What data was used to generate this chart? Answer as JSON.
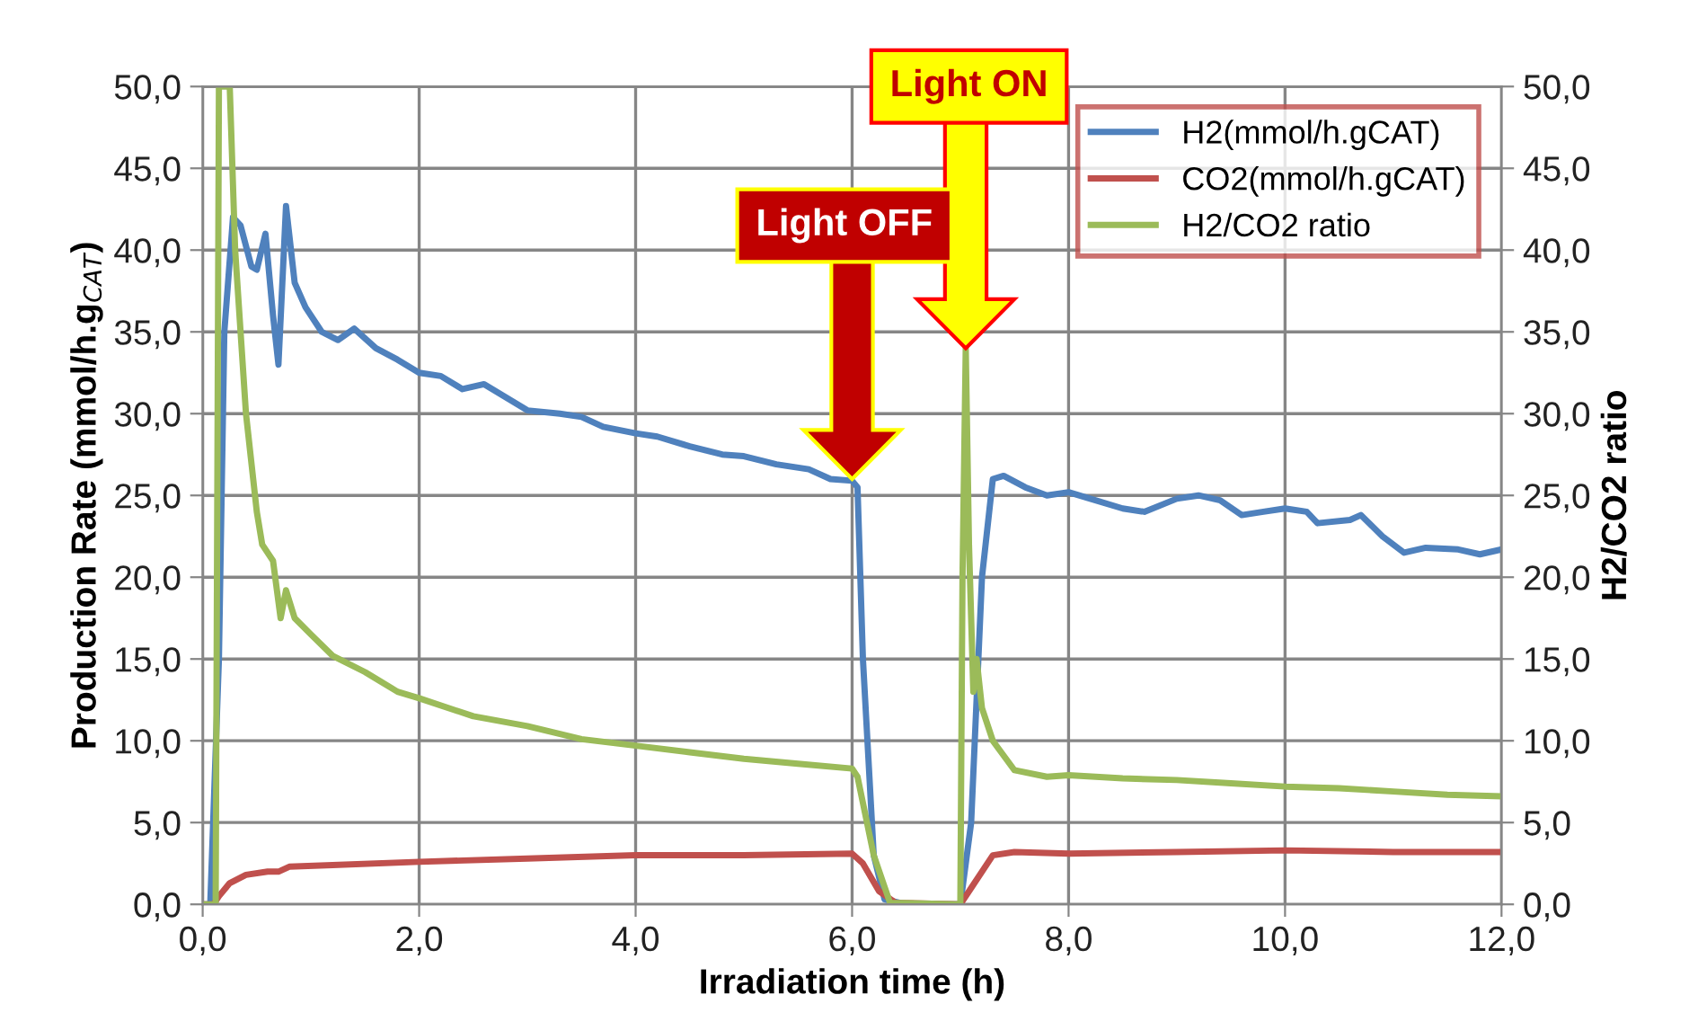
{
  "chart_data": {
    "type": "line",
    "xlabel": "Irradiation time (h)",
    "ylabel": "Production Rate (mmol/h.g$_{CAT}$)",
    "y2label": "H2/CO2 ratio",
    "xlim": [
      0,
      12
    ],
    "ylim": [
      0,
      50
    ],
    "y2lim": [
      0,
      50
    ],
    "xticks": [
      {
        "value": 0,
        "label": "0,0"
      },
      {
        "value": 2,
        "label": "2,0"
      },
      {
        "value": 4,
        "label": "4,0"
      },
      {
        "value": 6,
        "label": "6,0"
      },
      {
        "value": 8,
        "label": "8,0"
      },
      {
        "value": 10,
        "label": "10,0"
      },
      {
        "value": 12,
        "label": "12,0"
      }
    ],
    "yticks": [
      {
        "value": 0,
        "label": "0,0"
      },
      {
        "value": 5,
        "label": "5,0"
      },
      {
        "value": 10,
        "label": "10,0"
      },
      {
        "value": 15,
        "label": "15,0"
      },
      {
        "value": 20,
        "label": "20,0"
      },
      {
        "value": 25,
        "label": "25,0"
      },
      {
        "value": 30,
        "label": "30,0"
      },
      {
        "value": 35,
        "label": "35,0"
      },
      {
        "value": 40,
        "label": "40,0"
      },
      {
        "value": 45,
        "label": "45,0"
      },
      {
        "value": 50,
        "label": "50,0"
      }
    ],
    "y2ticks": [
      {
        "value": 0,
        "label": "0,0"
      },
      {
        "value": 5,
        "label": "5,0"
      },
      {
        "value": 10,
        "label": "10,0"
      },
      {
        "value": 15,
        "label": "15,0"
      },
      {
        "value": 20,
        "label": "20,0"
      },
      {
        "value": 25,
        "label": "25,0"
      },
      {
        "value": 30,
        "label": "30,0"
      },
      {
        "value": 35,
        "label": "35,0"
      },
      {
        "value": 40,
        "label": "40,0"
      },
      {
        "value": 45,
        "label": "45,0"
      },
      {
        "value": 50,
        "label": "50,0"
      }
    ],
    "grid": true,
    "legend": "top right",
    "marker": "none",
    "line_style": "solid",
    "series": [
      {
        "name": "H2(mmol/h.gCAT)",
        "color": "#4f81bd",
        "x": [
          0,
          0.07,
          0.15,
          0.2,
          0.28,
          0.35,
          0.45,
          0.5,
          0.58,
          0.65,
          0.7,
          0.77,
          0.85,
          0.95,
          1.1,
          1.25,
          1.4,
          1.6,
          1.8,
          2.0,
          2.2,
          2.4,
          2.6,
          2.8,
          3.0,
          3.3,
          3.5,
          3.7,
          4.0,
          4.2,
          4.5,
          4.8,
          5.0,
          5.3,
          5.6,
          5.8,
          6.0,
          6.05,
          6.1,
          6.2,
          6.3,
          6.5,
          7.0,
          7.1,
          7.2,
          7.3,
          7.4,
          7.6,
          7.8,
          8.0,
          8.2,
          8.5,
          8.7,
          9.0,
          9.2,
          9.4,
          9.6,
          9.8,
          10.0,
          10.2,
          10.3,
          10.6,
          10.7,
          10.9,
          11.1,
          11.3,
          11.6,
          11.8,
          12.0
        ],
        "values": [
          0,
          0,
          15,
          35,
          42,
          41.5,
          39,
          38.8,
          41,
          36,
          33,
          42.7,
          38,
          36.5,
          35,
          34.5,
          35.2,
          34,
          33.3,
          32.5,
          32.3,
          31.5,
          31.8,
          31.0,
          30.2,
          30.0,
          29.8,
          29.2,
          28.8,
          28.6,
          28.0,
          27.5,
          27.4,
          26.9,
          26.6,
          26.0,
          25.9,
          25.5,
          15,
          3,
          0.3,
          0,
          0,
          5,
          20,
          26,
          26.2,
          25.5,
          25.0,
          25.2,
          24.8,
          24.2,
          24.0,
          24.8,
          25.0,
          24.7,
          23.8,
          24.0,
          24.2,
          24.0,
          23.3,
          23.5,
          23.8,
          22.5,
          21.5,
          21.8,
          21.7,
          21.4,
          21.7
        ]
      },
      {
        "name": "CO2(mmol/h.gCAT)",
        "color": "#c0504d",
        "x": [
          0,
          0.1,
          0.15,
          0.25,
          0.4,
          0.6,
          0.7,
          0.8,
          1.2,
          2.0,
          3.0,
          4.0,
          5.0,
          6.0,
          6.1,
          6.25,
          6.4,
          7.0,
          7.1,
          7.3,
          7.5,
          8.0,
          9.0,
          10.0,
          11.0,
          12.0
        ],
        "values": [
          0,
          0,
          0.5,
          1.3,
          1.8,
          2.0,
          2.0,
          2.3,
          2.4,
          2.6,
          2.8,
          3.0,
          3.0,
          3.1,
          2.5,
          0.8,
          0.1,
          0,
          1.0,
          3.0,
          3.2,
          3.1,
          3.2,
          3.3,
          3.2,
          3.2
        ]
      },
      {
        "name": "H2/CO2 ratio",
        "color": "#9bbb59",
        "axis": "y2",
        "x": [
          0,
          0.12,
          0.15,
          0.25,
          0.3,
          0.4,
          0.5,
          0.55,
          0.65,
          0.72,
          0.77,
          0.85,
          1.0,
          1.2,
          1.5,
          1.8,
          2.0,
          2.5,
          3.0,
          3.5,
          4.0,
          4.5,
          5.0,
          5.5,
          6.0,
          6.05,
          6.2,
          6.35,
          7.0,
          7.02,
          7.05,
          7.08,
          7.12,
          7.15,
          7.2,
          7.3,
          7.5,
          7.8,
          8.0,
          8.5,
          9.0,
          9.5,
          10.0,
          10.5,
          11.0,
          11.5,
          12.0
        ],
        "values": [
          0,
          0,
          50,
          50,
          40,
          30,
          24,
          22,
          21,
          17.5,
          19.2,
          17.5,
          16.5,
          15.2,
          14.2,
          13,
          12.6,
          11.5,
          10.9,
          10.1,
          9.7,
          9.3,
          8.9,
          8.6,
          8.3,
          7.8,
          3,
          0.1,
          0,
          20,
          34,
          22,
          13,
          15,
          12,
          10,
          8.2,
          7.8,
          7.9,
          7.7,
          7.6,
          7.4,
          7.2,
          7.1,
          6.9,
          6.7,
          6.6
        ]
      }
    ],
    "annotations": [
      "Light OFF",
      "Light ON"
    ]
  }
}
